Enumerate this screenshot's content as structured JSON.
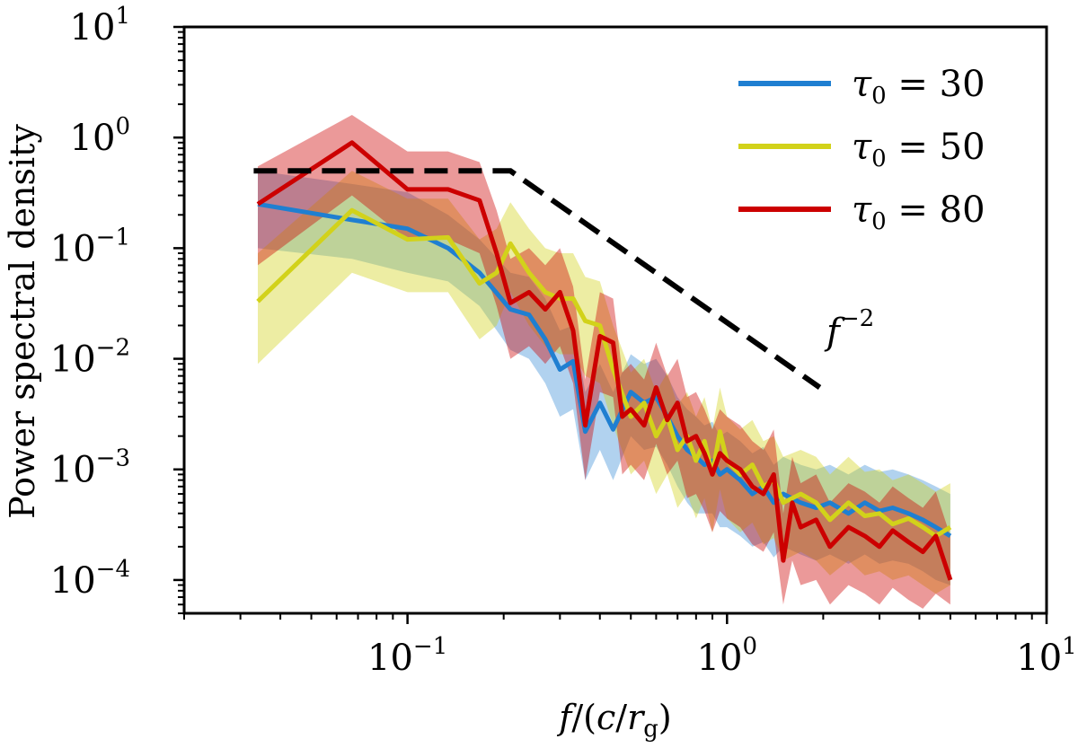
{
  "chart_data": {
    "type": "line",
    "title": "",
    "xlabel": "f/(c/r_g)",
    "ylabel": "Power spectral density",
    "xscale": "log",
    "yscale": "log",
    "xlim": [
      0.02,
      10
    ],
    "ylim": [
      5e-05,
      10
    ],
    "x_ticks": [
      {
        "base": "10",
        "exp": "−1",
        "value": 0.1
      },
      {
        "base": "10",
        "exp": "0",
        "value": 1
      },
      {
        "base": "10",
        "exp": "1",
        "value": 10
      }
    ],
    "y_ticks": [
      {
        "base": "10",
        "exp": "−4",
        "value": 0.0001
      },
      {
        "base": "10",
        "exp": "−3",
        "value": 0.001
      },
      {
        "base": "10",
        "exp": "−2",
        "value": 0.01
      },
      {
        "base": "10",
        "exp": "−1",
        "value": 0.1
      },
      {
        "base": "10",
        "exp": "0",
        "value": 1
      },
      {
        "base": "10",
        "exp": "1",
        "value": 10
      }
    ],
    "legend": {
      "position": "top-right",
      "entries": [
        {
          "name": "τ0 = 30",
          "symbol": "τ",
          "sub": "0",
          "rest": " = 30",
          "color": "#1f7fd1"
        },
        {
          "name": "τ0 = 50",
          "symbol": "τ",
          "sub": "0",
          "rest": " = 50",
          "color": "#d2d21a"
        },
        {
          "name": "τ0 = 80",
          "symbol": "τ",
          "sub": "0",
          "rest": " = 80",
          "color": "#cc0000"
        }
      ]
    },
    "reference_line": {
      "label_base": "f",
      "label_exp": "−2",
      "style": "dashed",
      "color": "#000000",
      "points": [
        [
          0.033,
          0.5
        ],
        [
          0.21,
          0.5
        ],
        [
          1.95,
          0.0055
        ]
      ]
    },
    "series": [
      {
        "name": "τ0 = 30",
        "color": "#1f7fd1",
        "fill_opacity": 0.35,
        "x": [
          0.034,
          0.067,
          0.1,
          0.134,
          0.168,
          0.21,
          0.24,
          0.27,
          0.3,
          0.33,
          0.36,
          0.4,
          0.44,
          0.5,
          0.55,
          0.6,
          0.65,
          0.7,
          0.75,
          0.8,
          0.85,
          0.9,
          0.95,
          1.0,
          1.1,
          1.2,
          1.3,
          1.4,
          1.5,
          1.7,
          1.9,
          2.1,
          2.4,
          2.7,
          3.0,
          3.3,
          3.7,
          4.1,
          4.5,
          5.0
        ],
        "values": [
          0.25,
          0.18,
          0.15,
          0.1,
          0.06,
          0.028,
          0.025,
          0.015,
          0.008,
          0.0095,
          0.0022,
          0.004,
          0.0023,
          0.005,
          0.004,
          0.0045,
          0.003,
          0.002,
          0.0015,
          0.0013,
          0.0011,
          0.0012,
          0.0009,
          0.001,
          0.0008,
          0.0006,
          0.0007,
          0.0005,
          0.0006,
          0.0005,
          0.00045,
          0.0005,
          0.0004,
          0.0005,
          0.00042,
          0.00045,
          0.0004,
          0.00035,
          0.0003,
          0.00025
        ],
        "lower": [
          0.1,
          0.08,
          0.06,
          0.05,
          0.03,
          0.012,
          0.01,
          0.006,
          0.003,
          0.0035,
          0.0008,
          0.0015,
          0.0008,
          0.002,
          0.0015,
          0.0016,
          0.0011,
          0.0007,
          0.0005,
          0.0004,
          0.0004,
          0.0004,
          0.0003,
          0.0003,
          0.00025,
          0.0002,
          0.00022,
          0.00016,
          0.0002,
          0.00017,
          0.00015,
          0.00017,
          0.00014,
          0.00017,
          0.00014,
          0.00015,
          0.00014,
          0.00012,
          0.0001,
          9e-05
        ],
        "upper": [
          0.5,
          0.38,
          0.32,
          0.2,
          0.12,
          0.06,
          0.055,
          0.035,
          0.018,
          0.02,
          0.005,
          0.009,
          0.005,
          0.011,
          0.009,
          0.01,
          0.007,
          0.0045,
          0.0035,
          0.003,
          0.0025,
          0.0027,
          0.002,
          0.0022,
          0.0018,
          0.0014,
          0.0016,
          0.0011,
          0.0013,
          0.0011,
          0.001,
          0.0011,
          0.0009,
          0.0011,
          0.00095,
          0.001,
          0.0009,
          0.0008,
          0.0007,
          0.0006
        ]
      },
      {
        "name": "τ0 = 50",
        "color": "#d2d21a",
        "fill_opacity": 0.4,
        "x": [
          0.034,
          0.067,
          0.1,
          0.134,
          0.168,
          0.19,
          0.21,
          0.24,
          0.27,
          0.3,
          0.33,
          0.36,
          0.4,
          0.44,
          0.5,
          0.55,
          0.6,
          0.65,
          0.7,
          0.75,
          0.8,
          0.85,
          0.9,
          0.95,
          1.0,
          1.1,
          1.2,
          1.3,
          1.4,
          1.5,
          1.7,
          1.9,
          2.1,
          2.4,
          2.7,
          3.0,
          3.3,
          3.7,
          4.1,
          4.5,
          5.0
        ],
        "values": [
          0.033,
          0.22,
          0.12,
          0.125,
          0.048,
          0.06,
          0.11,
          0.06,
          0.04,
          0.035,
          0.035,
          0.022,
          0.02,
          0.008,
          0.003,
          0.004,
          0.002,
          0.003,
          0.0015,
          0.002,
          0.0012,
          0.0018,
          0.0009,
          0.0022,
          0.0012,
          0.0009,
          0.0011,
          0.0007,
          0.0008,
          0.0005,
          0.0006,
          0.0005,
          0.00035,
          0.0005,
          0.00038,
          0.0004,
          0.00032,
          0.00036,
          0.0003,
          0.00025,
          0.0003
        ],
        "lower": [
          0.009,
          0.06,
          0.04,
          0.04,
          0.015,
          0.02,
          0.04,
          0.02,
          0.013,
          0.011,
          0.011,
          0.007,
          0.006,
          0.0025,
          0.0009,
          0.0012,
          0.0006,
          0.0009,
          0.00045,
          0.0006,
          0.00036,
          0.00055,
          0.00027,
          0.00066,
          0.00036,
          0.00027,
          0.00033,
          0.00021,
          0.00024,
          0.00015,
          0.00018,
          0.00015,
          0.00011,
          0.00015,
          0.00011,
          0.00012,
          0.0001,
          0.00011,
          9e-05,
          7.5e-05,
          9e-05
        ],
        "upper": [
          0.09,
          0.5,
          0.28,
          0.28,
          0.12,
          0.15,
          0.26,
          0.15,
          0.1,
          0.09,
          0.09,
          0.055,
          0.05,
          0.02,
          0.0075,
          0.01,
          0.005,
          0.0075,
          0.0038,
          0.005,
          0.003,
          0.0045,
          0.0023,
          0.0055,
          0.003,
          0.0023,
          0.0028,
          0.0018,
          0.002,
          0.0013,
          0.0015,
          0.0013,
          0.0009,
          0.0013,
          0.00095,
          0.001,
          0.0008,
          0.0009,
          0.00075,
          0.00063,
          0.00075
        ]
      },
      {
        "name": "τ0 = 80",
        "color": "#cc0000",
        "fill_opacity": 0.4,
        "x": [
          0.034,
          0.067,
          0.1,
          0.134,
          0.168,
          0.19,
          0.21,
          0.24,
          0.27,
          0.3,
          0.33,
          0.36,
          0.4,
          0.44,
          0.47,
          0.5,
          0.55,
          0.6,
          0.65,
          0.7,
          0.75,
          0.8,
          0.85,
          0.9,
          0.95,
          1.0,
          1.1,
          1.2,
          1.3,
          1.4,
          1.5,
          1.6,
          1.7,
          1.9,
          2.1,
          2.4,
          2.7,
          3.0,
          3.3,
          3.7,
          4.1,
          4.5,
          5.0
        ],
        "values": [
          0.25,
          0.9,
          0.34,
          0.34,
          0.27,
          0.09,
          0.032,
          0.04,
          0.028,
          0.04,
          0.018,
          0.0025,
          0.016,
          0.014,
          0.003,
          0.0035,
          0.0025,
          0.0055,
          0.0028,
          0.004,
          0.0018,
          0.002,
          0.0014,
          0.0009,
          0.0014,
          0.0012,
          0.001,
          0.0007,
          0.0006,
          0.0009,
          0.00015,
          0.0005,
          0.0003,
          0.00035,
          0.0002,
          0.0003,
          0.00025,
          0.0002,
          0.00028,
          0.00022,
          0.00018,
          0.00025,
          0.0001
        ],
        "lower": [
          0.07,
          0.3,
          0.12,
          0.12,
          0.09,
          0.03,
          0.01,
          0.013,
          0.009,
          0.013,
          0.006,
          0.0008,
          0.005,
          0.0045,
          0.0009,
          0.0011,
          0.0008,
          0.0017,
          0.0009,
          0.0012,
          0.00055,
          0.0006,
          0.00042,
          0.00027,
          0.00042,
          0.00036,
          0.0003,
          0.00021,
          0.00018,
          0.00027,
          6e-05,
          0.00015,
          9e-05,
          0.0001,
          6e-05,
          9e-05,
          7.5e-05,
          6e-05,
          8.5e-05,
          6.6e-05,
          5.5e-05,
          7.5e-05,
          6e-05
        ],
        "upper": [
          0.55,
          1.6,
          0.75,
          0.75,
          0.6,
          0.22,
          0.08,
          0.1,
          0.07,
          0.1,
          0.045,
          0.0065,
          0.04,
          0.035,
          0.0075,
          0.009,
          0.0065,
          0.014,
          0.007,
          0.01,
          0.0045,
          0.005,
          0.0035,
          0.0023,
          0.0035,
          0.003,
          0.0025,
          0.0018,
          0.0015,
          0.0023,
          0.0004,
          0.0013,
          0.00075,
          0.0009,
          0.0005,
          0.00075,
          0.00063,
          0.0005,
          0.0007,
          0.00055,
          0.00045,
          0.00063,
          0.00025
        ]
      }
    ]
  }
}
